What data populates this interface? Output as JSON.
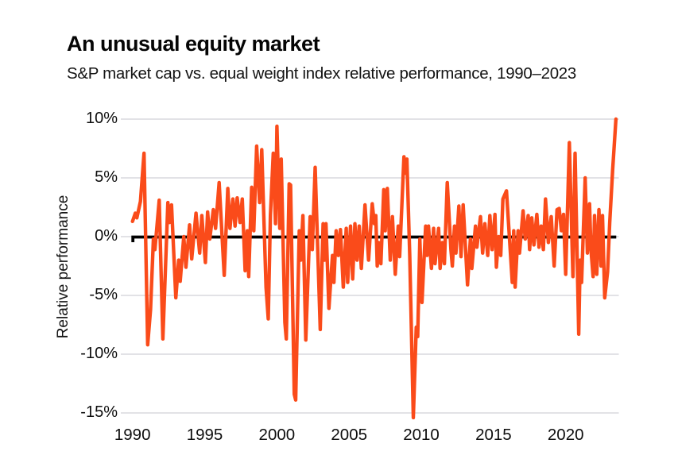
{
  "header": {
    "title": "An unusual equity market",
    "subtitle": "S&P market cap vs. equal weight index relative performance, 1990–2023"
  },
  "chart_data": {
    "type": "line",
    "title": "An unusual equity market",
    "subtitle": "S&P market cap vs. equal weight index relative performance, 1990–2023",
    "xlabel": "",
    "ylabel": "Relative performance",
    "x_ticks": [
      1990,
      1995,
      2000,
      2005,
      2010,
      2015,
      2020
    ],
    "y_ticks": [
      {
        "value": 10,
        "label": "10%"
      },
      {
        "value": 5,
        "label": "5%"
      },
      {
        "value": 0,
        "label": "0%"
      },
      {
        "value": -5,
        "label": "-5%"
      },
      {
        "value": -10,
        "label": "-10%"
      },
      {
        "value": -15,
        "label": "-15%"
      }
    ],
    "xlim": [
      1989.1,
      2023.9
    ],
    "ylim": [
      -15,
      10
    ],
    "grid": true,
    "legend_position": "none",
    "colors": {
      "line": "#FA4B1A",
      "zero_line": "#000000",
      "grid": "#D8D8DD",
      "text": "#0E0E0E"
    },
    "series": [
      {
        "name": "S&P market cap vs. equal weight relative performance",
        "color": "#FA4B1A",
        "points": [
          [
            1990.0,
            1.3
          ],
          [
            1990.2,
            2.0
          ],
          [
            1990.3,
            1.6
          ],
          [
            1990.55,
            3.0
          ],
          [
            1990.8,
            7.1
          ],
          [
            1991.05,
            -9.2
          ],
          [
            1991.25,
            -6.2
          ],
          [
            1991.45,
            -0.2
          ],
          [
            1991.55,
            -1.1
          ],
          [
            1991.85,
            3.1
          ],
          [
            1992.1,
            -8.7
          ],
          [
            1992.45,
            2.9
          ],
          [
            1992.55,
            1.2
          ],
          [
            1992.7,
            2.7
          ],
          [
            1993.0,
            -5.2
          ],
          [
            1993.2,
            -2.0
          ],
          [
            1993.3,
            -3.8
          ],
          [
            1993.55,
            0.0
          ],
          [
            1993.7,
            -2.6
          ],
          [
            1993.95,
            1.0
          ],
          [
            1994.1,
            -1.9
          ],
          [
            1994.4,
            2.0
          ],
          [
            1994.65,
            -1.4
          ],
          [
            1994.8,
            1.8
          ],
          [
            1995.05,
            -2.2
          ],
          [
            1995.2,
            2.1
          ],
          [
            1995.35,
            -0.2
          ],
          [
            1995.6,
            2.3
          ],
          [
            1995.75,
            0.7
          ],
          [
            1996.0,
            4.6
          ],
          [
            1996.35,
            -3.3
          ],
          [
            1996.6,
            4.1
          ],
          [
            1996.75,
            0.7
          ],
          [
            1996.95,
            3.2
          ],
          [
            1997.1,
            0.9
          ],
          [
            1997.25,
            3.3
          ],
          [
            1997.45,
            1.2
          ],
          [
            1997.6,
            3.2
          ],
          [
            1997.8,
            -2.9
          ],
          [
            1997.95,
            0.5
          ],
          [
            1998.05,
            -3.4
          ],
          [
            1998.25,
            4.2
          ],
          [
            1998.4,
            0.5
          ],
          [
            1998.6,
            7.7
          ],
          [
            1998.8,
            2.9
          ],
          [
            1998.95,
            7.4
          ],
          [
            1999.25,
            -4.3
          ],
          [
            1999.4,
            -7.0
          ],
          [
            1999.55,
            1.8
          ],
          [
            1999.75,
            7.1
          ],
          [
            1999.9,
            1.1
          ],
          [
            2000.0,
            9.4
          ],
          [
            2000.2,
            0.7
          ],
          [
            2000.3,
            6.6
          ],
          [
            2000.55,
            -7.3
          ],
          [
            2000.65,
            -8.7
          ],
          [
            2000.85,
            4.5
          ],
          [
            2000.95,
            4.4
          ],
          [
            2001.2,
            -13.4
          ],
          [
            2001.3,
            -13.9
          ],
          [
            2001.55,
            0.5
          ],
          [
            2001.65,
            -2.0
          ],
          [
            2001.8,
            1.8
          ],
          [
            2002.0,
            -8.8
          ],
          [
            2002.3,
            1.7
          ],
          [
            2002.45,
            -1.1
          ],
          [
            2002.65,
            5.9
          ],
          [
            2003.0,
            -7.9
          ],
          [
            2003.2,
            1.1
          ],
          [
            2003.3,
            -2.0
          ],
          [
            2003.4,
            1.1
          ],
          [
            2003.6,
            -6.1
          ],
          [
            2003.85,
            -1.6
          ],
          [
            2003.95,
            -3.9
          ],
          [
            2004.1,
            0.5
          ],
          [
            2004.25,
            -1.6
          ],
          [
            2004.4,
            0.6
          ],
          [
            2004.6,
            -4.3
          ],
          [
            2004.8,
            0.7
          ],
          [
            2004.9,
            -3.9
          ],
          [
            2005.1,
            0.9
          ],
          [
            2005.25,
            -3.6
          ],
          [
            2005.4,
            1.1
          ],
          [
            2005.55,
            -2.0
          ],
          [
            2005.7,
            0.9
          ],
          [
            2005.85,
            -2.7
          ],
          [
            2006.1,
            2.7
          ],
          [
            2006.35,
            -2.0
          ],
          [
            2006.6,
            2.8
          ],
          [
            2006.75,
            1.1
          ],
          [
            2006.85,
            1.8
          ],
          [
            2006.95,
            -2.5
          ],
          [
            2007.05,
            -0.5
          ],
          [
            2007.2,
            -2.3
          ],
          [
            2007.4,
            4.0
          ],
          [
            2007.5,
            0.5
          ],
          [
            2007.65,
            4.1
          ],
          [
            2007.85,
            -2.0
          ],
          [
            2008.0,
            1.7
          ],
          [
            2008.2,
            -3.2
          ],
          [
            2008.4,
            0.9
          ],
          [
            2008.5,
            -1.7
          ],
          [
            2008.8,
            6.8
          ],
          [
            2008.9,
            5.4
          ],
          [
            2009.0,
            6.6
          ],
          [
            2009.2,
            -1.6
          ],
          [
            2009.45,
            -15.4
          ],
          [
            2009.65,
            -7.7
          ],
          [
            2009.75,
            -8.5
          ],
          [
            2009.9,
            -0.2
          ],
          [
            2010.05,
            -5.6
          ],
          [
            2010.3,
            0.9
          ],
          [
            2010.4,
            -1.6
          ],
          [
            2010.5,
            0.9
          ],
          [
            2010.7,
            -2.7
          ],
          [
            2010.85,
            0.7
          ],
          [
            2010.95,
            -2.3
          ],
          [
            2011.2,
            0.7
          ],
          [
            2011.3,
            -2.7
          ],
          [
            2011.45,
            -0.5
          ],
          [
            2011.6,
            -2.3
          ],
          [
            2011.8,
            4.6
          ],
          [
            2012.05,
            -1.1
          ],
          [
            2012.15,
            -2.5
          ],
          [
            2012.3,
            0.9
          ],
          [
            2012.4,
            -1.4
          ],
          [
            2012.6,
            2.6
          ],
          [
            2012.75,
            -1.7
          ],
          [
            2012.9,
            2.7
          ],
          [
            2013.2,
            -4.1
          ],
          [
            2013.4,
            -0.2
          ],
          [
            2013.5,
            -2.7
          ],
          [
            2013.75,
            0.9
          ],
          [
            2013.85,
            -0.9
          ],
          [
            2014.1,
            1.7
          ],
          [
            2014.25,
            -1.4
          ],
          [
            2014.4,
            1.1
          ],
          [
            2014.6,
            -1.6
          ],
          [
            2014.75,
            1.8
          ],
          [
            2014.9,
            -1.1
          ],
          [
            2015.1,
            1.9
          ],
          [
            2015.2,
            -2.6
          ],
          [
            2015.35,
            0.0
          ],
          [
            2015.5,
            -1.6
          ],
          [
            2015.65,
            3.2
          ],
          [
            2015.9,
            3.9
          ],
          [
            2016.3,
            -3.9
          ],
          [
            2016.4,
            0.5
          ],
          [
            2016.5,
            -4.3
          ],
          [
            2016.7,
            0.5
          ],
          [
            2016.8,
            -1.4
          ],
          [
            2017.05,
            2.2
          ],
          [
            2017.2,
            -0.2
          ],
          [
            2017.4,
            1.8
          ],
          [
            2017.5,
            -1.1
          ],
          [
            2017.65,
            1.6
          ],
          [
            2017.8,
            -0.7
          ],
          [
            2018.0,
            1.9
          ],
          [
            2018.15,
            -0.9
          ],
          [
            2018.3,
            0.9
          ],
          [
            2018.45,
            -1.1
          ],
          [
            2018.6,
            3.2
          ],
          [
            2018.8,
            -0.5
          ],
          [
            2019.0,
            1.7
          ],
          [
            2019.2,
            -2.5
          ],
          [
            2019.4,
            2.3
          ],
          [
            2019.55,
            2.4
          ],
          [
            2019.7,
            0.5
          ],
          [
            2019.85,
            1.9
          ],
          [
            2020.0,
            -3.2
          ],
          [
            2020.25,
            8.0
          ],
          [
            2020.5,
            -3.4
          ],
          [
            2020.65,
            7.1
          ],
          [
            2020.9,
            -8.3
          ],
          [
            2021.0,
            -2.0
          ],
          [
            2021.1,
            -3.9
          ],
          [
            2021.35,
            5.0
          ],
          [
            2021.5,
            -1.4
          ],
          [
            2021.65,
            2.8
          ],
          [
            2021.75,
            -1.1
          ],
          [
            2021.9,
            -3.4
          ],
          [
            2022.0,
            1.8
          ],
          [
            2022.15,
            -3.2
          ],
          [
            2022.3,
            2.3
          ],
          [
            2022.45,
            -2.5
          ],
          [
            2022.55,
            1.8
          ],
          [
            2022.7,
            -5.2
          ],
          [
            2022.9,
            -3.0
          ],
          [
            2023.05,
            1.2
          ],
          [
            2023.25,
            5.7
          ],
          [
            2023.48,
            10.0
          ]
        ]
      },
      {
        "name": "Zero baseline",
        "color": "#000000",
        "points": [
          [
            1990.0,
            0
          ],
          [
            2023.5,
            0
          ]
        ]
      }
    ]
  }
}
